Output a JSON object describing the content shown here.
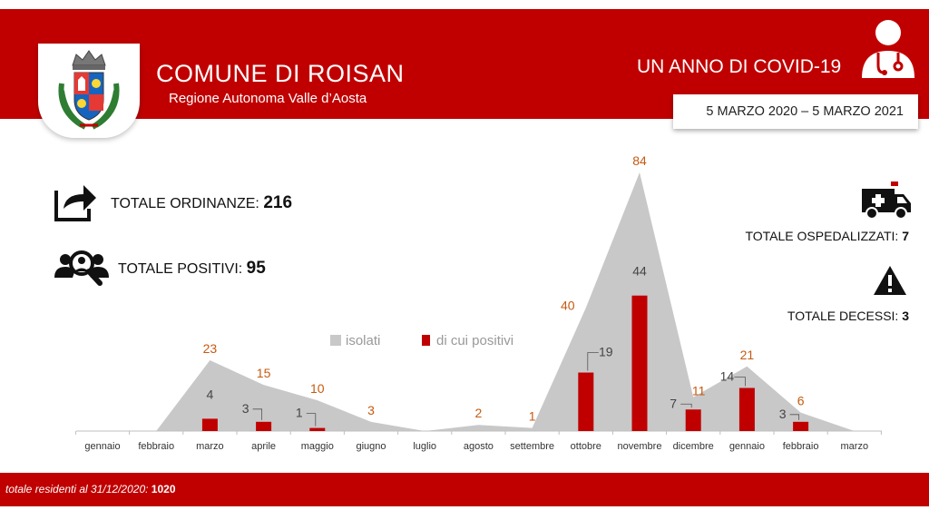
{
  "header": {
    "town_name": "COMUNE DI ROISAN",
    "region": "Regione Autonoma Valle d’Aosta",
    "campaign_title": "UN ANNO DI COVID-19",
    "date_range": "5 MARZO 2020 – 5 MARZO 2021"
  },
  "stats": {
    "ordinanze_label": "TOTALE ORDINANZE:",
    "ordinanze_value": "216",
    "positivi_label": "TOTALE POSITIVI:",
    "positivi_value": "95",
    "ospedalizzati_label": "TOTALE OSPEDALIZZATI:",
    "ospedalizzati_value": "7",
    "decessi_label": "TOTALE DECESSI:",
    "decessi_value": "3"
  },
  "icons": {
    "crest": "town-crest-icon",
    "doctor": "doctor-icon",
    "share": "share-arrow-icon",
    "people": "people-search-icon",
    "ambulance": "ambulance-icon",
    "warning": "warning-icon"
  },
  "footer": {
    "residents_label": "totale residenti al 31/12/2020:",
    "residents_value": "1020"
  },
  "colors": {
    "brand_red": "#c00000",
    "area_gray": "#c8c8c8",
    "bar_red": "#c00000",
    "area_label": "#c55a11",
    "bar_label": "#444444"
  },
  "chart_data": {
    "type": "bar",
    "categories": [
      "gennaio",
      "febbraio",
      "marzo",
      "aprile",
      "maggio",
      "giugno",
      "luglio",
      "agosto",
      "settembre",
      "ottobre",
      "novembre",
      "dicembre",
      "gennaio",
      "febbraio",
      "marzo"
    ],
    "series": [
      {
        "name": "isolati",
        "chart_type": "area",
        "values": [
          null,
          0,
          23,
          15,
          10,
          3,
          0,
          2,
          1,
          40,
          84,
          11,
          21,
          6,
          0
        ],
        "labels": [
          "",
          "",
          "23",
          "15",
          "10",
          "3",
          "",
          "2",
          "1",
          "40",
          "84",
          "11",
          "21",
          "6",
          ""
        ]
      },
      {
        "name": "di cui positivi",
        "chart_type": "bar",
        "values": [
          0,
          0,
          4,
          3,
          1,
          0,
          0,
          0,
          0,
          19,
          44,
          7,
          14,
          3,
          0
        ],
        "labels": [
          "",
          "",
          "4",
          "3",
          "1",
          "",
          "",
          "",
          "",
          "19",
          "44",
          "7",
          "14",
          "3",
          ""
        ]
      }
    ],
    "legend": [
      "isolati",
      "di cui positivi"
    ],
    "legend_position": "top-center",
    "ylim": [
      0,
      84
    ],
    "grid": false
  }
}
